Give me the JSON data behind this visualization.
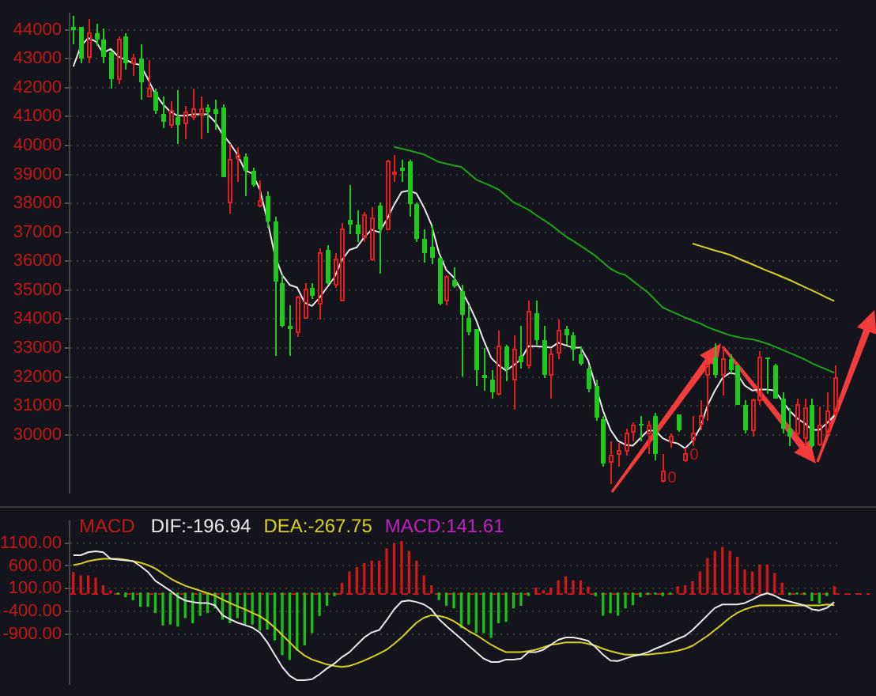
{
  "chart_data": [
    {
      "type": "candlestick",
      "categories": [
        null,
        null,
        null,
        null,
        null,
        null,
        null,
        null,
        null,
        null,
        null,
        null,
        null,
        null,
        null,
        null,
        null,
        null,
        null,
        null,
        null,
        null,
        null,
        null,
        null,
        null,
        null,
        null,
        null,
        null,
        null,
        null,
        null,
        null,
        null,
        null,
        null,
        null,
        null,
        null,
        null,
        null,
        null,
        null,
        null,
        null,
        null,
        null,
        null,
        null,
        null,
        null,
        null,
        null,
        null,
        null,
        null,
        null,
        null,
        null,
        null,
        null,
        null,
        null,
        null,
        null,
        null,
        null,
        null,
        null,
        null,
        null,
        null,
        null,
        null,
        null,
        null,
        null,
        null,
        null,
        null,
        null,
        null,
        null,
        null,
        null,
        null,
        null,
        null,
        null,
        null,
        null,
        null,
        null,
        null,
        null,
        null,
        null,
        null,
        null,
        null,
        null,
        null
      ],
      "ohlc": [
        [
          44120,
          44470,
          43510,
          44000
        ],
        [
          44120,
          44120,
          42820,
          43030
        ],
        [
          43080,
          44350,
          42870,
          43860
        ],
        [
          43900,
          44200,
          43430,
          43690
        ],
        [
          43650,
          44030,
          42820,
          43080
        ],
        [
          43200,
          43300,
          41950,
          42300
        ],
        [
          42300,
          43770,
          42120,
          43650
        ],
        [
          43770,
          43860,
          42650,
          42850
        ],
        [
          42870,
          43170,
          42380,
          43030
        ],
        [
          43030,
          43510,
          41600,
          42180
        ],
        [
          41720,
          42960,
          41690,
          41950
        ],
        [
          41860,
          41950,
          41080,
          41220
        ],
        [
          41080,
          41690,
          40600,
          40820
        ],
        [
          40730,
          41520,
          40600,
          41220
        ],
        [
          40990,
          41920,
          40070,
          40700
        ],
        [
          40790,
          41340,
          40210,
          41170
        ],
        [
          40960,
          41950,
          40870,
          41260
        ],
        [
          41080,
          41690,
          40210,
          41260
        ],
        [
          41330,
          41430,
          40420,
          41170
        ],
        [
          41260,
          41600,
          40530,
          41080
        ],
        [
          41290,
          41430,
          38910,
          38910
        ],
        [
          38020,
          40040,
          37640,
          39480
        ],
        [
          39570,
          39950,
          38740,
          39690
        ],
        [
          39600,
          39730,
          38270,
          39120
        ],
        [
          39120,
          39210,
          38560,
          38650
        ],
        [
          37910,
          38820,
          37860,
          38090
        ],
        [
          38270,
          38390,
          37170,
          37400
        ],
        [
          37400,
          37520,
          32740,
          35320
        ],
        [
          35260,
          35520,
          33700,
          33790
        ],
        [
          33750,
          34480,
          32740,
          33670
        ],
        [
          33530,
          34800,
          33400,
          34740
        ],
        [
          34050,
          35260,
          34050,
          35000
        ],
        [
          35090,
          35260,
          34700,
          34830
        ],
        [
          34520,
          36430,
          34000,
          36260
        ],
        [
          36390,
          36560,
          35180,
          35260
        ],
        [
          35180,
          36260,
          35090,
          36040
        ],
        [
          34620,
          37340,
          34620,
          37120
        ],
        [
          37430,
          38650,
          36910,
          37260
        ],
        [
          37260,
          37780,
          36640,
          36910
        ],
        [
          36820,
          37690,
          36640,
          37600
        ],
        [
          36040,
          37860,
          36010,
          37470
        ],
        [
          37910,
          38040,
          35560,
          37080
        ],
        [
          37120,
          39510,
          37080,
          39430
        ],
        [
          39030,
          39660,
          38740,
          39080
        ],
        [
          39260,
          39520,
          38740,
          39120
        ],
        [
          39430,
          39510,
          37520,
          37950
        ],
        [
          37950,
          38040,
          36650,
          36770
        ],
        [
          36770,
          37090,
          35950,
          36300
        ],
        [
          36480,
          37260,
          35870,
          36130
        ],
        [
          36130,
          36130,
          34450,
          34520
        ],
        [
          34620,
          35520,
          34450,
          35440
        ],
        [
          35350,
          35780,
          35090,
          35150
        ],
        [
          34970,
          35180,
          32010,
          34130
        ],
        [
          34050,
          34480,
          33440,
          33530
        ],
        [
          33650,
          33650,
          31700,
          32220
        ],
        [
          32090,
          33010,
          31530,
          31960
        ],
        [
          31920,
          32220,
          31270,
          31490
        ],
        [
          31390,
          33580,
          31350,
          33060
        ],
        [
          33060,
          33100,
          31830,
          32310
        ],
        [
          31920,
          33430,
          30890,
          32920
        ],
        [
          32710,
          33750,
          32310,
          32480
        ],
        [
          32400,
          34650,
          32310,
          34270
        ],
        [
          34220,
          34650,
          33100,
          33270
        ],
        [
          33270,
          33790,
          31960,
          32090
        ],
        [
          32090,
          33010,
          31270,
          32780
        ],
        [
          32830,
          34000,
          32610,
          33610
        ],
        [
          33650,
          33790,
          33100,
          33440
        ],
        [
          33440,
          33530,
          32570,
          32950
        ],
        [
          32780,
          33060,
          32400,
          32450
        ],
        [
          32310,
          32400,
          31490,
          31560
        ],
        [
          31700,
          31880,
          30480,
          30570
        ],
        [
          30520,
          30660,
          28920,
          29010
        ],
        [
          29040,
          29790,
          28310,
          29270
        ],
        [
          29350,
          29700,
          28920,
          29440
        ],
        [
          29440,
          30220,
          29270,
          30050
        ],
        [
          30100,
          30450,
          29790,
          30310
        ],
        [
          30400,
          30660,
          29790,
          30310
        ],
        [
          30050,
          30480,
          29350,
          30310
        ],
        [
          30620,
          30740,
          29130,
          29350
        ],
        [
          28400,
          29350,
          28370,
          28710
        ],
        [
          29760,
          30050,
          29540,
          29960
        ],
        [
          30690,
          30690,
          30100,
          30140
        ],
        [
          29100,
          29530,
          29060,
          29350
        ],
        [
          29830,
          30660,
          29620,
          30050
        ],
        [
          30400,
          31180,
          30140,
          30660
        ],
        [
          32050,
          32400,
          30480,
          32400
        ],
        [
          32690,
          33180,
          31960,
          32090
        ],
        [
          32090,
          33040,
          31350,
          32610
        ],
        [
          32610,
          32780,
          32140,
          32260
        ],
        [
          32400,
          32400,
          31010,
          31040
        ],
        [
          31040,
          31180,
          30050,
          30140
        ],
        [
          30140,
          31270,
          29960,
          31180
        ],
        [
          31180,
          32910,
          31010,
          32650
        ],
        [
          32650,
          32650,
          31400,
          32590
        ],
        [
          32400,
          32450,
          31230,
          31270
        ],
        [
          31270,
          31440,
          30050,
          30230
        ],
        [
          30230,
          30920,
          29620,
          29930
        ],
        [
          30050,
          31270,
          29930,
          31010
        ],
        [
          29880,
          31270,
          29620,
          30920
        ],
        [
          31010,
          31270,
          29530,
          29620
        ],
        [
          29660,
          30980,
          29620,
          30310
        ],
        [
          30050,
          31440,
          29990,
          30830
        ],
        [
          30750,
          32400,
          30660,
          31960
        ]
      ],
      "colors": [
        "#20c820",
        "#20c820",
        "#e02020",
        "#20c820",
        "#20c820",
        "#20c820",
        "#e02020",
        "#20c820",
        "#e02020",
        "#20c820",
        "#e02020",
        "#20c820",
        "#20c820",
        "#e02020",
        "#20c820",
        "#e02020",
        "#e02020",
        "#e02020",
        "#20c820",
        "#20c820",
        "#20c820",
        "#e02020",
        "#e02020",
        "#20c820",
        "#20c820",
        "#e02020",
        "#20c820",
        "#20c820",
        "#20c820",
        "#20c820",
        "#e02020",
        "#e02020",
        "#20c820",
        "#e02020",
        "#20c820",
        "#e02020",
        "#e02020",
        "#20c820",
        "#20c820",
        "#e02020",
        "#e02020",
        "#20c820",
        "#e02020",
        "#e02020",
        "#20c820",
        "#20c820",
        "#20c820",
        "#20c820",
        "#20c820",
        "#20c820",
        "#e02020",
        "#20c820",
        "#20c820",
        "#20c820",
        "#20c820",
        "#20c820",
        "#20c820",
        "#e02020",
        "#20c820",
        "#e02020",
        "#20c820",
        "#e02020",
        "#20c820",
        "#20c820",
        "#e02020",
        "#e02020",
        "#20c820",
        "#20c820",
        "#20c820",
        "#20c820",
        "#20c820",
        "#20c820",
        "#e02020",
        "#e02020",
        "#e02020",
        "#e02020",
        "#20c820",
        "#e02020",
        "#20c820",
        "#e02020",
        "#e02020",
        "#20c820",
        "#e02020",
        "#e02020",
        "#e02020",
        "#e02020",
        "#20c820",
        "#e02020",
        "#20c820",
        "#20c820",
        "#20c820",
        "#e02020",
        "#e02020",
        "#20c820",
        "#20c820",
        "#20c820",
        "#20c820",
        "#e02020",
        "#e02020",
        "#20c820",
        "#e02020",
        "#e02020",
        "#e02020"
      ],
      "series": [
        {
          "type": "line",
          "color": "#e8e8e8",
          "values": [
            42730,
            43430,
            43720,
            43600,
            43200,
            43340,
            43080,
            42960,
            42850,
            42780,
            42300,
            41780,
            41430,
            41170,
            41030,
            41030,
            41080,
            41080,
            41080,
            40820,
            40390,
            40070,
            39690,
            39140,
            39030,
            38480,
            37430,
            36220,
            35520,
            35180,
            35090,
            34570,
            34450,
            34740,
            35090,
            35440,
            36040,
            36390,
            36480,
            36830,
            37090,
            37000,
            37430,
            37950,
            38390,
            38440,
            38340,
            37860,
            37260,
            36300,
            35690,
            35440,
            35000,
            34520,
            33960,
            33270,
            32660,
            32400,
            32220,
            32400,
            32610,
            33060,
            33060,
            33040,
            33010,
            33180,
            33090,
            33010,
            33010,
            32570,
            31700,
            30830,
            30170,
            29790,
            29650,
            29620,
            29880,
            30140,
            30140,
            29880,
            29760,
            29700,
            29530,
            29790,
            30230,
            31010,
            31530,
            31960,
            32140,
            32090,
            31700,
            31530,
            31560,
            31560,
            31530,
            31180,
            30830,
            30570,
            30400,
            30170,
            30170,
            30400,
            30660
          ]
        },
        {
          "type": "line",
          "color": "#1fa01f",
          "values": [
            null,
            null,
            null,
            null,
            null,
            null,
            null,
            null,
            null,
            null,
            null,
            null,
            null,
            null,
            null,
            null,
            null,
            null,
            null,
            null,
            null,
            null,
            null,
            null,
            null,
            null,
            null,
            null,
            null,
            null,
            null,
            null,
            null,
            null,
            null,
            null,
            null,
            null,
            null,
            null,
            null,
            null,
            null,
            39950,
            39890,
            39830,
            39760,
            39690,
            39560,
            39430,
            39370,
            39310,
            39260,
            39040,
            38820,
            38710,
            38600,
            38480,
            38260,
            38040,
            37910,
            37780,
            37600,
            37430,
            37260,
            37060,
            36860,
            36700,
            36530,
            36360,
            36180,
            35960,
            35740,
            35600,
            35520,
            35320,
            35120,
            34920,
            34660,
            34400,
            34280,
            34170,
            34050,
            33950,
            33850,
            33720,
            33620,
            33530,
            33440,
            33380,
            33330,
            33300,
            33230,
            33150,
            33050,
            32940,
            32830,
            32720,
            32610,
            32470,
            32360,
            32250,
            32140
          ]
        },
        {
          "type": "line",
          "color": "#d8d020",
          "values": [
            null,
            null,
            null,
            null,
            null,
            null,
            null,
            null,
            null,
            null,
            null,
            null,
            null,
            null,
            null,
            null,
            null,
            null,
            null,
            null,
            null,
            null,
            null,
            null,
            null,
            null,
            null,
            null,
            null,
            null,
            null,
            null,
            null,
            null,
            null,
            null,
            null,
            null,
            null,
            null,
            null,
            null,
            null,
            null,
            null,
            null,
            null,
            null,
            null,
            null,
            null,
            null,
            null,
            null,
            null,
            null,
            null,
            null,
            null,
            null,
            null,
            null,
            null,
            null,
            null,
            null,
            null,
            null,
            null,
            null,
            null,
            null,
            null,
            null,
            null,
            null,
            null,
            null,
            null,
            null,
            null,
            null,
            null,
            36610,
            36530,
            36450,
            36370,
            36300,
            36220,
            36110,
            36000,
            35890,
            35780,
            35670,
            35570,
            35460,
            35350,
            35230,
            35110,
            34990,
            34870,
            34740,
            34620
          ]
        }
      ],
      "ylim": [
        28000,
        44560
      ],
      "yticks": [
        30000,
        31000,
        32000,
        33000,
        34000,
        35000,
        36000,
        37000,
        38000,
        39000,
        40000,
        41000,
        42000,
        43000,
        44000
      ],
      "grid": "y",
      "tick_labels": "y",
      "annotations": [
        {
          "text": "0",
          "y": 28500
        },
        {
          "text": "0",
          "y": 29300
        }
      ]
    },
    {
      "type": "bar",
      "title": "MACD",
      "categories": [
        null,
        null,
        null,
        null,
        null,
        null,
        null,
        null,
        null,
        null,
        null,
        null,
        null,
        null,
        null,
        null,
        null,
        null,
        null,
        null,
        null,
        null,
        null,
        null,
        null,
        null,
        null,
        null,
        null,
        null,
        null,
        null,
        null,
        null,
        null,
        null,
        null,
        null,
        null,
        null,
        null,
        null,
        null,
        null,
        null,
        null,
        null,
        null,
        null,
        null,
        null,
        null,
        null,
        null,
        null,
        null,
        null,
        null,
        null,
        null,
        null,
        null,
        null,
        null,
        null,
        null,
        null,
        null,
        null,
        null,
        null,
        null,
        null,
        null,
        null,
        null,
        null,
        null,
        null,
        null,
        null,
        null,
        null,
        null,
        null,
        null,
        null,
        null,
        null,
        null,
        null,
        null,
        null,
        null,
        null,
        null,
        null,
        null,
        null,
        null,
        null,
        null,
        null
      ],
      "series": [
        {
          "type": "line",
          "name": "DIF:-196.94",
          "color": "#e8e8e8",
          "values": [
            834,
            834,
            900,
            920,
            900,
            758,
            740,
            720,
            704,
            596,
            466,
            270,
            162,
            54,
            -76,
            -162,
            -195,
            -217,
            -217,
            -270,
            -487,
            -574,
            -650,
            -704,
            -758,
            -866,
            -1083,
            -1354,
            -1625,
            -1820,
            -1917,
            -1917,
            -1895,
            -1787,
            -1657,
            -1549,
            -1408,
            -1300,
            -1137,
            -975,
            -866,
            -812,
            -596,
            -357,
            -184,
            -162,
            -195,
            -249,
            -357,
            -570,
            -725,
            -866,
            -1007,
            -1159,
            -1300,
            -1440,
            -1516,
            -1516,
            -1462,
            -1462,
            -1440,
            -1300,
            -1300,
            -1245,
            -1137,
            -1029,
            -975,
            -975,
            -1007,
            -1050,
            -1191,
            -1354,
            -1484,
            -1495,
            -1440,
            -1386,
            -1354,
            -1300,
            -1224,
            -1159,
            -1083,
            -1007,
            -942,
            -812,
            -650,
            -487,
            -325,
            -249,
            -249,
            -249,
            -217,
            -141,
            -54,
            0,
            -54,
            -141,
            -184,
            -227,
            -270,
            -357,
            -379,
            -325,
            -196.94
          ]
        },
        {
          "type": "line",
          "name": "DEA:-267.75",
          "color": "#d8d020",
          "values": [
            617,
            650,
            704,
            736,
            758,
            758,
            758,
            736,
            704,
            671,
            617,
            541,
            433,
            325,
            238,
            162,
            108,
            54,
            0,
            -54,
            -141,
            -217,
            -292,
            -357,
            -433,
            -509,
            -617,
            -758,
            -920,
            -1083,
            -1245,
            -1375,
            -1462,
            -1516,
            -1570,
            -1603,
            -1625,
            -1603,
            -1549,
            -1484,
            -1408,
            -1332,
            -1245,
            -1115,
            -975,
            -812,
            -650,
            -541,
            -487,
            -500,
            -541,
            -617,
            -725,
            -833,
            -920,
            -1029,
            -1137,
            -1224,
            -1300,
            -1300,
            -1300,
            -1278,
            -1245,
            -1191,
            -1137,
            -1115,
            -1083,
            -1083,
            -1083,
            -1115,
            -1159,
            -1224,
            -1278,
            -1321,
            -1354,
            -1354,
            -1354,
            -1354,
            -1332,
            -1321,
            -1300,
            -1267,
            -1224,
            -1159,
            -1050,
            -942,
            -812,
            -682,
            -541,
            -433,
            -357,
            -303,
            -270,
            -270,
            -270,
            -270,
            -270,
            -270,
            -270,
            -270,
            -270,
            -249,
            -267.75
          ]
        },
        {
          "type": "bar",
          "name": "MACD:141.61",
          "color": "#c020c0",
          "values": [
            455,
            380,
            380,
            325,
            162,
            50,
            -20,
            -76,
            -140,
            -290,
            -290,
            -430,
            -700,
            -680,
            -725,
            -540,
            -650,
            -490,
            -430,
            -325,
            -575,
            -650,
            -540,
            -680,
            -680,
            -810,
            -790,
            -1030,
            -1350,
            -1460,
            -1250,
            -1140,
            -870,
            -490,
            -270,
            -55,
            217,
            466,
            563,
            650,
            704,
            704,
            975,
            1083,
            1137,
            920,
            704,
            380,
            162,
            -140,
            -270,
            -325,
            -760,
            -680,
            -870,
            -870,
            -975,
            -650,
            -620,
            -325,
            -270,
            -50,
            108,
            54,
            108,
            270,
            357,
            270,
            270,
            130,
            -54,
            -487,
            -433,
            -487,
            -325,
            -250,
            -76,
            -30,
            -20,
            -54,
            -20,
            140,
            162,
            250,
            466,
            758,
            920,
            1007,
            920,
            790,
            510,
            466,
            617,
            617,
            433,
            217,
            -32,
            -20,
            -30,
            -162,
            -217,
            -54,
            141.61
          ],
          "colors": [
            "#d01818",
            "#d01818",
            "#d01818",
            "#d01818",
            "#d01818",
            "#d01818",
            "#18c018",
            "#18c018",
            "#18c018",
            "#18c018",
            "#18c018",
            "#18c018",
            "#18c018",
            "#18c018",
            "#18c018",
            "#18c018",
            "#18c018",
            "#18c018",
            "#18c018",
            "#18c018",
            "#18c018",
            "#18c018",
            "#18c018",
            "#18c018",
            "#18c018",
            "#18c018",
            "#18c018",
            "#18c018",
            "#18c018",
            "#18c018",
            "#18c018",
            "#18c018",
            "#18c018",
            "#18c018",
            "#18c018",
            "#18c018",
            "#d01818",
            "#d01818",
            "#d01818",
            "#d01818",
            "#d01818",
            "#d01818",
            "#d01818",
            "#d01818",
            "#d01818",
            "#d01818",
            "#d01818",
            "#d01818",
            "#d01818",
            "#18c018",
            "#18c018",
            "#18c018",
            "#18c018",
            "#18c018",
            "#18c018",
            "#18c018",
            "#18c018",
            "#18c018",
            "#18c018",
            "#18c018",
            "#18c018",
            "#18c018",
            "#d01818",
            "#d01818",
            "#d01818",
            "#d01818",
            "#d01818",
            "#d01818",
            "#d01818",
            "#d01818",
            "#18c018",
            "#18c018",
            "#18c018",
            "#18c018",
            "#18c018",
            "#18c018",
            "#18c018",
            "#18c018",
            "#18c018",
            "#18c018",
            "#18c018",
            "#d01818",
            "#d01818",
            "#d01818",
            "#d01818",
            "#d01818",
            "#d01818",
            "#d01818",
            "#d01818",
            "#d01818",
            "#d01818",
            "#d01818",
            "#d01818",
            "#d01818",
            "#d01818",
            "#d01818",
            "#18c018",
            "#18c018",
            "#18c018",
            "#18c018",
            "#18c018",
            "#18c018",
            "#d01818"
          ]
        }
      ],
      "ylim": [
        -2000,
        1580
      ],
      "yticks": [
        {
          "value": 1100,
          "label": "1100.00"
        },
        {
          "value": 600,
          "label": "600.00"
        },
        {
          "value": 100,
          "label": "100.00"
        },
        {
          "value": -400,
          "label": "-400.00"
        },
        {
          "value": -900,
          "label": "-900.00"
        }
      ],
      "grid": "y",
      "tick_labels": "y",
      "legend": "top left",
      "ref_lines": [
        {
          "axis": "y",
          "value": 0,
          "color": "#c01818",
          "line_style": "dashed"
        }
      ]
    }
  ]
}
